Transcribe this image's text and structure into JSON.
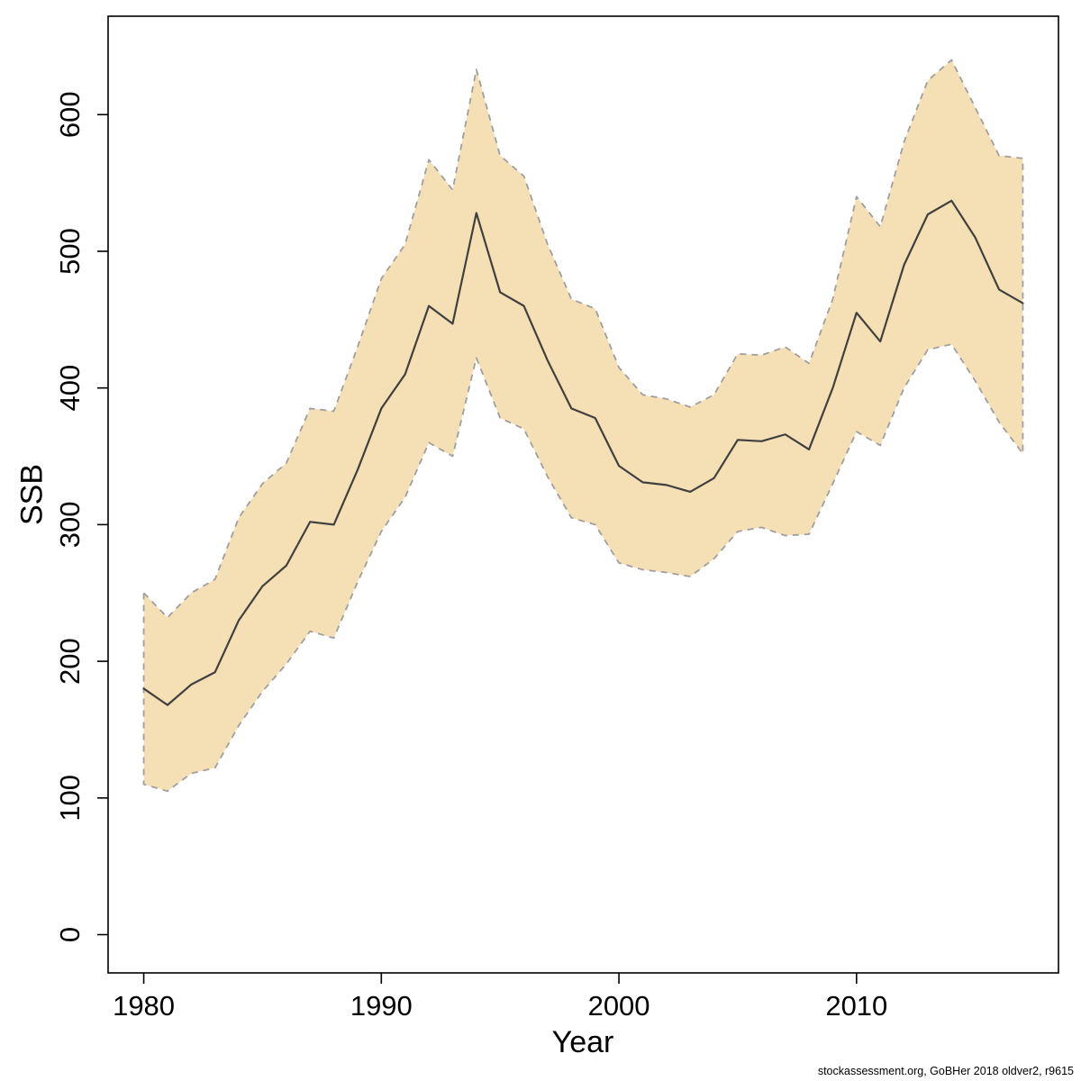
{
  "page": {
    "background": "#ffffff"
  },
  "footer": {
    "credit": "stockassessment.org, GoBHer  2018  oldver2, r9615"
  },
  "chart_data": {
    "type": "area",
    "title": "",
    "xlabel": "Year",
    "ylabel": "SSB",
    "xlim": [
      1978.5,
      2018.5
    ],
    "ylim": [
      -28,
      672
    ],
    "xticks": [
      1980,
      1990,
      2000,
      2010
    ],
    "yticks": [
      0,
      100,
      200,
      300,
      400,
      500,
      600
    ],
    "grid": false,
    "legend": "none",
    "band_fill": "#f5dfb4",
    "band_edge": "#9f9f9f",
    "line_color": "#404040",
    "x": [
      1980,
      1981,
      1982,
      1983,
      1984,
      1985,
      1986,
      1987,
      1988,
      1989,
      1990,
      1991,
      1992,
      1993,
      1994,
      1995,
      1996,
      1997,
      1998,
      1999,
      2000,
      2001,
      2002,
      2003,
      2004,
      2005,
      2006,
      2007,
      2008,
      2009,
      2010,
      2011,
      2012,
      2013,
      2014,
      2015,
      2016,
      2017
    ],
    "series": [
      {
        "name": "median",
        "values": [
          180,
          168,
          183,
          192,
          230,
          255,
          270,
          302,
          300,
          340,
          385,
          410,
          460,
          447,
          528,
          470,
          460,
          420,
          385,
          378,
          343,
          331,
          329,
          324,
          334,
          362,
          361,
          366,
          355,
          400,
          455,
          434,
          490,
          527,
          537,
          510,
          472,
          462
        ]
      },
      {
        "name": "upper_ci",
        "values": [
          250,
          232,
          250,
          260,
          305,
          330,
          345,
          385,
          383,
          430,
          480,
          505,
          567,
          545,
          633,
          570,
          555,
          505,
          465,
          458,
          415,
          395,
          392,
          386,
          395,
          425,
          424,
          430,
          418,
          465,
          540,
          518,
          580,
          625,
          640,
          605,
          570,
          568
        ]
      },
      {
        "name": "lower_ci",
        "values": [
          110,
          105,
          118,
          122,
          153,
          178,
          198,
          222,
          217,
          258,
          295,
          320,
          360,
          350,
          422,
          378,
          370,
          335,
          305,
          300,
          272,
          267,
          265,
          262,
          275,
          295,
          298,
          292,
          293,
          330,
          368,
          358,
          400,
          428,
          432,
          405,
          375,
          352
        ]
      }
    ]
  }
}
